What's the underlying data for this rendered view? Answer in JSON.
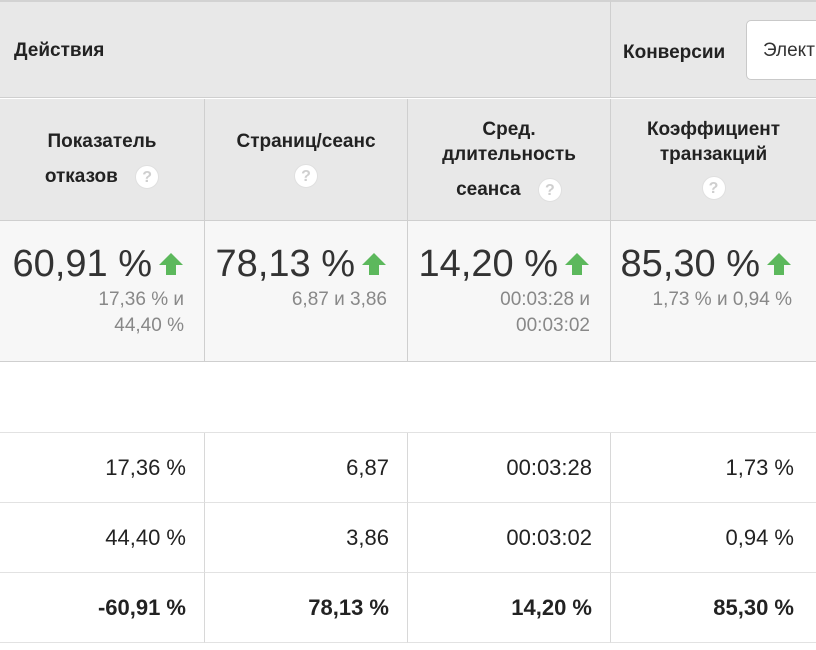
{
  "header": {
    "actions_label": "Действия",
    "conversions_label": "Конверсии",
    "conversions_select_value": "Элект"
  },
  "columns": [
    {
      "line1": "Показатель",
      "line2": "отказов",
      "help": "?"
    },
    {
      "line1": "Страниц/сеанс",
      "line2": "",
      "help": "?"
    },
    {
      "line1": "Сред.",
      "line2": "длительность",
      "line3": "сеанса",
      "help": "?"
    },
    {
      "line1": "Коэффициент",
      "line2": "транзакций",
      "help": "?"
    }
  ],
  "summary": [
    {
      "value": "60,91 %",
      "sub1": "17,36 % и",
      "sub2": "44,40 %"
    },
    {
      "value": "78,13 %",
      "sub1": "6,87 и 3,86",
      "sub2": ""
    },
    {
      "value": "14,20 %",
      "sub1": "00:03:28 и",
      "sub2": "00:03:02"
    },
    {
      "value": "85,30 %",
      "sub1": "1,73 % и 0,94 %",
      "sub2": ""
    }
  ],
  "rows": [
    [
      "17,36 %",
      "6,87",
      "00:03:28",
      "1,73 %"
    ],
    [
      "44,40 %",
      "3,86",
      "00:03:02",
      "0,94 %"
    ],
    [
      "-60,91 %",
      "78,13 %",
      "14,20 %",
      "85,30 %"
    ]
  ],
  "colors": {
    "header_bg": "#e8e8e8",
    "summary_bg": "#f7f7f7",
    "arrow_green": "#5cb85c",
    "muted_text": "#888888"
  }
}
